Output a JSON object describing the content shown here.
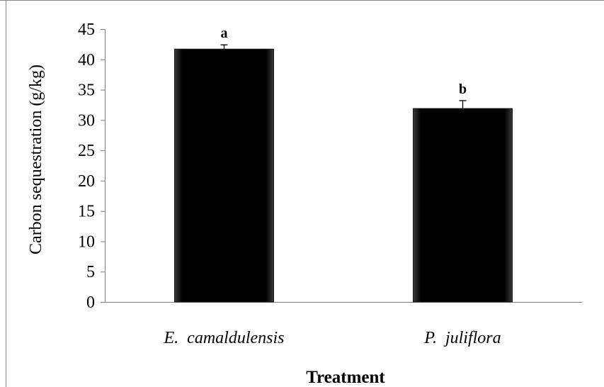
{
  "chart_data": {
    "type": "bar",
    "categories": [
      "E.  camaldulensis",
      "P.  juliflora"
    ],
    "values": [
      41.7,
      31.9
    ],
    "errors": [
      0.7,
      1.3
    ],
    "significance_letters": [
      "a",
      "b"
    ],
    "title": "",
    "xlabel": "Treatment",
    "ylabel": "Carbon sequestration  (g/kg)",
    "ylim": [
      0,
      45
    ],
    "yticks": [
      "0",
      "5",
      "10",
      "15",
      "20",
      "25",
      "30",
      "35",
      "40",
      "45"
    ],
    "grid": false,
    "legend": "none",
    "bar_color": "#000000"
  }
}
